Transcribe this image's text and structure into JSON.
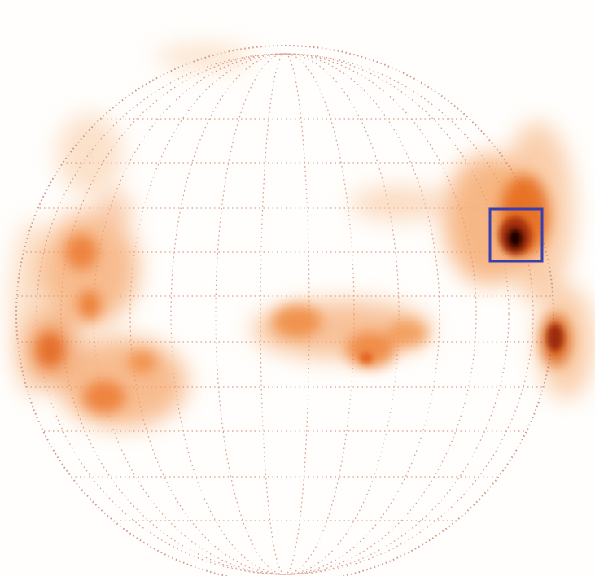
{
  "image": {
    "kind": "solar X-ray full-disk image",
    "caption_text": "",
    "colors": {
      "background": "#fffefc",
      "emission_faint": "#f7b27a",
      "emission_mid": "#e86a14",
      "emission_core": "#1a0600",
      "grid": "#d2907a",
      "limb": "#c98d7c",
      "highlight_box": "#3a3fb0"
    }
  }
}
